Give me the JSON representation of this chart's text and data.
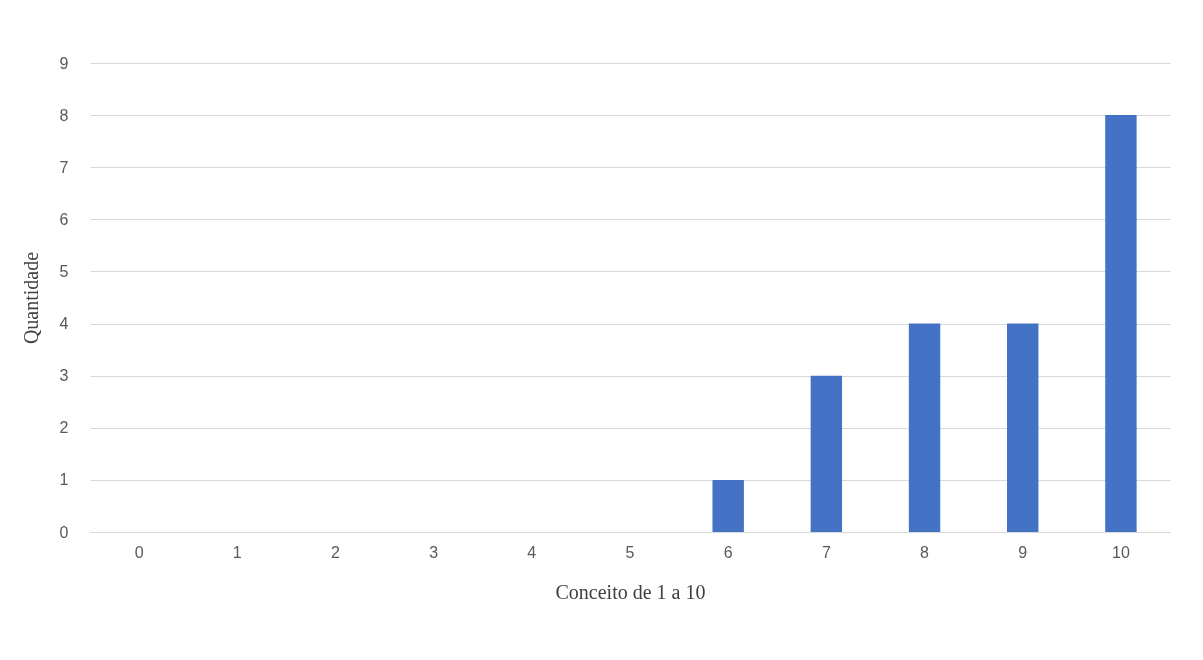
{
  "chart_data": {
    "type": "bar",
    "xlabel": "Conceito de 1 a 10",
    "ylabel": "Quantidade",
    "categories": [
      "0",
      "1",
      "2",
      "3",
      "4",
      "5",
      "6",
      "7",
      "8",
      "9",
      "10"
    ],
    "values": [
      0,
      0,
      0,
      0,
      0,
      0,
      1,
      3,
      4,
      4,
      8
    ],
    "color": "#4472c4",
    "ylim": [
      0,
      9
    ],
    "yticks": [
      0,
      1,
      2,
      3,
      4,
      5,
      6,
      7,
      8,
      9
    ],
    "grid": "y"
  }
}
